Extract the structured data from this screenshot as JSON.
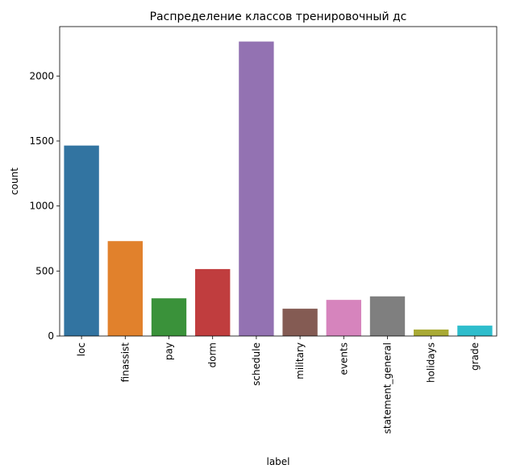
{
  "chart_data": {
    "type": "bar",
    "title": "Распределение классов тренировочный дс",
    "xlabel": "label",
    "ylabel": "count",
    "categories": [
      "loc",
      "finassist",
      "pay",
      "dorm",
      "schedule",
      "military",
      "events",
      "statement_general",
      "holidays",
      "grade"
    ],
    "values": [
      1465,
      730,
      290,
      515,
      2265,
      210,
      278,
      305,
      50,
      80
    ],
    "colors": [
      "#3274a1",
      "#e1812c",
      "#3a923a",
      "#c03d3e",
      "#9372b2",
      "#845b53",
      "#d684bd",
      "#7f7f7f",
      "#a9aa35",
      "#2ebdcc"
    ],
    "ylim": [
      0,
      2380
    ],
    "yticks": [
      0,
      500,
      1000,
      1500,
      2000
    ],
    "grid": false,
    "legend": "none"
  }
}
